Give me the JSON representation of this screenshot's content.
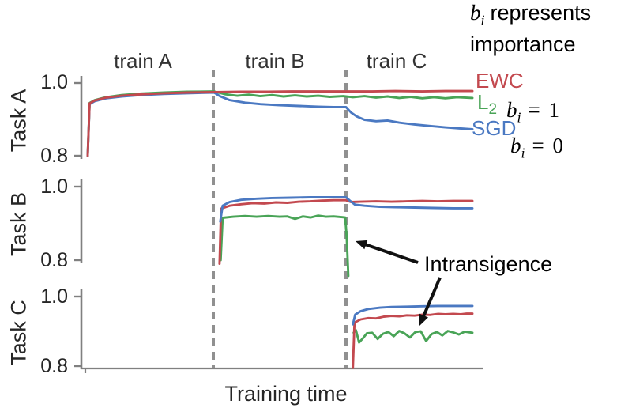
{
  "colors": {
    "ewc": "#c3494f",
    "l2": "#49a457",
    "sgd": "#4b79c2",
    "axis": "#808080",
    "dashed": "#909090",
    "arrow": "#111111",
    "text": "#262626"
  },
  "legend": {
    "ewc": "EWC",
    "l2_base": "L",
    "l2_sub": "2",
    "sgd": "SGD"
  },
  "annotations": {
    "importance_var": "b",
    "importance_sub": "i",
    "importance_text": "represents importance",
    "b1_var": "b",
    "b1_sub": "i",
    "b1_eq": "= 1",
    "b0_var": "b",
    "b0_sub": "i",
    "b0_eq": "= 0",
    "intransigence": "Intransigence"
  },
  "chart_data": {
    "type": "line",
    "xlabel": "Training time",
    "x_axis": {
      "range": [
        0,
        1
      ],
      "tick_labels": "none"
    },
    "phases": [
      {
        "label": "train A",
        "x_start": 0.0,
        "x_end": 0.328
      },
      {
        "label": "train B",
        "x_start": 0.328,
        "x_end": 0.672
      },
      {
        "label": "train C",
        "x_start": 0.672,
        "x_end": 1.0
      }
    ],
    "legend_entries": [
      "EWC",
      "L2",
      "SGD"
    ],
    "panels": [
      {
        "ylabel": "Task A",
        "ylim": [
          0.8,
          1.0
        ],
        "yticks": [
          "1.0",
          "0.8"
        ],
        "series": [
          {
            "name": "L2",
            "color": "#49a457",
            "points": [
              [
                0.002,
                0.8
              ],
              [
                0.007,
                0.945
              ],
              [
                0.02,
                0.953
              ],
              [
                0.05,
                0.961
              ],
              [
                0.09,
                0.967
              ],
              [
                0.14,
                0.971
              ],
              [
                0.2,
                0.974
              ],
              [
                0.26,
                0.976
              ],
              [
                0.33,
                0.977
              ],
              [
                0.36,
                0.969
              ],
              [
                0.39,
                0.965
              ],
              [
                0.42,
                0.968
              ],
              [
                0.45,
                0.964
              ],
              [
                0.48,
                0.967
              ],
              [
                0.51,
                0.963
              ],
              [
                0.54,
                0.966
              ],
              [
                0.57,
                0.963
              ],
              [
                0.6,
                0.965
              ],
              [
                0.63,
                0.962
              ],
              [
                0.665,
                0.964
              ],
              [
                0.69,
                0.961
              ],
              [
                0.72,
                0.964
              ],
              [
                0.75,
                0.96
              ],
              [
                0.78,
                0.963
              ],
              [
                0.81,
                0.959
              ],
              [
                0.84,
                0.962
              ],
              [
                0.87,
                0.958
              ],
              [
                0.9,
                0.961
              ],
              [
                0.93,
                0.958
              ],
              [
                0.96,
                0.961
              ],
              [
                1.0,
                0.959
              ]
            ]
          },
          {
            "name": "SGD",
            "color": "#4b79c2",
            "points": [
              [
                0.002,
                0.8
              ],
              [
                0.007,
                0.942
              ],
              [
                0.02,
                0.95
              ],
              [
                0.05,
                0.958
              ],
              [
                0.09,
                0.963
              ],
              [
                0.14,
                0.967
              ],
              [
                0.2,
                0.97
              ],
              [
                0.26,
                0.972
              ],
              [
                0.33,
                0.974
              ],
              [
                0.345,
                0.964
              ],
              [
                0.37,
                0.953
              ],
              [
                0.41,
                0.946
              ],
              [
                0.45,
                0.942
              ],
              [
                0.5,
                0.939
              ],
              [
                0.55,
                0.937
              ],
              [
                0.6,
                0.935
              ],
              [
                0.64,
                0.934
              ],
              [
                0.672,
                0.934
              ],
              [
                0.685,
                0.919
              ],
              [
                0.7,
                0.908
              ],
              [
                0.72,
                0.899
              ],
              [
                0.75,
                0.895
              ],
              [
                0.78,
                0.897
              ],
              [
                0.81,
                0.891
              ],
              [
                0.85,
                0.886
              ],
              [
                0.89,
                0.882
              ],
              [
                0.93,
                0.878
              ],
              [
                0.97,
                0.875
              ],
              [
                1.0,
                0.873
              ]
            ]
          },
          {
            "name": "EWC",
            "color": "#c3494f",
            "points": [
              [
                0.002,
                0.8
              ],
              [
                0.007,
                0.944
              ],
              [
                0.02,
                0.952
              ],
              [
                0.05,
                0.96
              ],
              [
                0.09,
                0.965
              ],
              [
                0.14,
                0.969
              ],
              [
                0.2,
                0.972
              ],
              [
                0.26,
                0.974
              ],
              [
                0.33,
                0.975
              ],
              [
                0.4,
                0.976
              ],
              [
                0.47,
                0.976
              ],
              [
                0.53,
                0.977
              ],
              [
                0.6,
                0.977
              ],
              [
                0.672,
                0.977
              ],
              [
                0.74,
                0.977
              ],
              [
                0.8,
                0.978
              ],
              [
                0.87,
                0.977
              ],
              [
                0.93,
                0.978
              ],
              [
                1.0,
                0.978
              ]
            ]
          }
        ]
      },
      {
        "ylabel": "Task B",
        "ylim": [
          0.8,
          1.0
        ],
        "yticks": [
          "1.0",
          "0.8"
        ],
        "series": [
          {
            "name": "L2",
            "color": "#49a457",
            "points": [
              [
                0.347,
                0.8
              ],
              [
                0.352,
                0.915
              ],
              [
                0.38,
                0.918
              ],
              [
                0.41,
                0.92
              ],
              [
                0.44,
                0.918
              ],
              [
                0.47,
                0.92
              ],
              [
                0.5,
                0.918
              ],
              [
                0.52,
                0.919
              ],
              [
                0.54,
                0.912
              ],
              [
                0.56,
                0.919
              ],
              [
                0.58,
                0.916
              ],
              [
                0.6,
                0.921
              ],
              [
                0.62,
                0.918
              ],
              [
                0.64,
                0.919
              ],
              [
                0.66,
                0.917
              ],
              [
                0.67,
                0.916
              ],
              [
                0.674,
                0.86
              ],
              [
                0.678,
                0.757
              ]
            ]
          },
          {
            "name": "EWC",
            "color": "#c3494f",
            "points": [
              [
                0.344,
                0.79
              ],
              [
                0.348,
                0.94
              ],
              [
                0.37,
                0.948
              ],
              [
                0.4,
                0.952
              ],
              [
                0.43,
                0.955
              ],
              [
                0.46,
                0.954
              ],
              [
                0.49,
                0.957
              ],
              [
                0.52,
                0.956
              ],
              [
                0.55,
                0.959
              ],
              [
                0.58,
                0.96
              ],
              [
                0.61,
                0.962
              ],
              [
                0.64,
                0.963
              ],
              [
                0.672,
                0.963
              ],
              [
                0.685,
                0.958
              ],
              [
                0.71,
                0.959
              ],
              [
                0.75,
                0.96
              ],
              [
                0.79,
                0.959
              ],
              [
                0.83,
                0.96
              ],
              [
                0.87,
                0.961
              ],
              [
                0.91,
                0.96
              ],
              [
                0.95,
                0.961
              ],
              [
                1.0,
                0.961
              ]
            ]
          },
          {
            "name": "SGD",
            "color": "#4b79c2",
            "points": [
              [
                0.346,
                0.905
              ],
              [
                0.352,
                0.948
              ],
              [
                0.37,
                0.958
              ],
              [
                0.4,
                0.964
              ],
              [
                0.44,
                0.967
              ],
              [
                0.48,
                0.969
              ],
              [
                0.53,
                0.97
              ],
              [
                0.58,
                0.971
              ],
              [
                0.63,
                0.971
              ],
              [
                0.672,
                0.971
              ],
              [
                0.682,
                0.962
              ],
              [
                0.695,
                0.951
              ],
              [
                0.72,
                0.948
              ],
              [
                0.76,
                0.945
              ],
              [
                0.8,
                0.944
              ],
              [
                0.85,
                0.943
              ],
              [
                0.9,
                0.942
              ],
              [
                0.95,
                0.941
              ],
              [
                1.0,
                0.941
              ]
            ]
          }
        ]
      },
      {
        "ylabel": "Task C",
        "ylim": [
          0.8,
          1.0
        ],
        "yticks": [
          "1.0",
          "0.8"
        ],
        "series": [
          {
            "name": "L2",
            "color": "#49a457",
            "points": [
              [
                0.692,
                0.896
              ],
              [
                0.698,
                0.903
              ],
              [
                0.706,
                0.868
              ],
              [
                0.716,
                0.88
              ],
              [
                0.726,
                0.894
              ],
              [
                0.74,
                0.896
              ],
              [
                0.754,
                0.878
              ],
              [
                0.768,
                0.893
              ],
              [
                0.782,
                0.898
              ],
              [
                0.796,
                0.886
              ],
              [
                0.81,
                0.901
              ],
              [
                0.824,
                0.894
              ],
              [
                0.838,
                0.882
              ],
              [
                0.852,
                0.898
              ],
              [
                0.866,
                0.9
              ],
              [
                0.88,
                0.872
              ],
              [
                0.894,
                0.892
              ],
              [
                0.908,
                0.898
              ],
              [
                0.922,
                0.888
              ],
              [
                0.936,
                0.901
              ],
              [
                0.95,
                0.897
              ],
              [
                0.965,
                0.891
              ],
              [
                0.98,
                0.899
              ],
              [
                1.0,
                0.896
              ]
            ]
          },
          {
            "name": "EWC",
            "color": "#c3494f",
            "points": [
              [
                0.69,
                0.795
              ],
              [
                0.694,
                0.925
              ],
              [
                0.71,
                0.934
              ],
              [
                0.73,
                0.938
              ],
              [
                0.75,
                0.937
              ],
              [
                0.77,
                0.942
              ],
              [
                0.79,
                0.944
              ],
              [
                0.81,
                0.943
              ],
              [
                0.83,
                0.946
              ],
              [
                0.85,
                0.945
              ],
              [
                0.87,
                0.948
              ],
              [
                0.89,
                0.947
              ],
              [
                0.91,
                0.95
              ],
              [
                0.93,
                0.949
              ],
              [
                0.95,
                0.95
              ],
              [
                0.97,
                0.949
              ],
              [
                0.985,
                0.951
              ],
              [
                1.0,
                0.951
              ]
            ]
          },
          {
            "name": "SGD",
            "color": "#4b79c2",
            "points": [
              [
                0.69,
                0.92
              ],
              [
                0.696,
                0.948
              ],
              [
                0.71,
                0.958
              ],
              [
                0.73,
                0.964
              ],
              [
                0.76,
                0.968
              ],
              [
                0.79,
                0.97
              ],
              [
                0.83,
                0.971
              ],
              [
                0.87,
                0.972
              ],
              [
                0.91,
                0.973
              ],
              [
                0.95,
                0.973
              ],
              [
                1.0,
                0.973
              ]
            ]
          }
        ]
      }
    ]
  }
}
